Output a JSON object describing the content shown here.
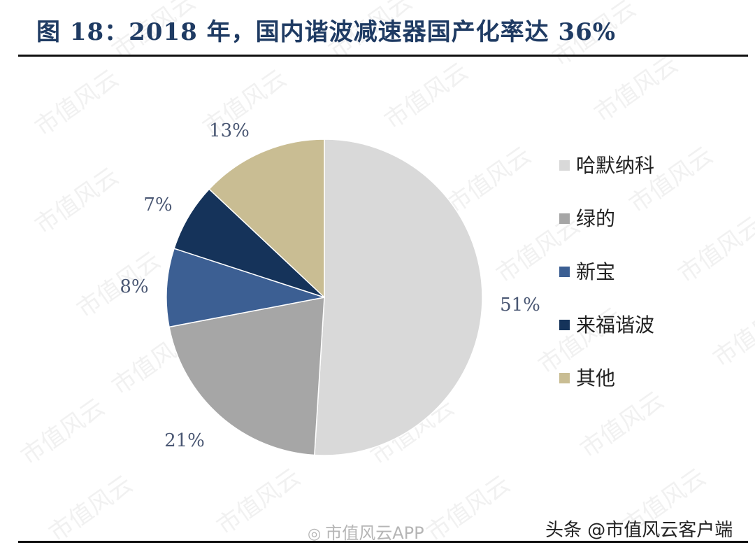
{
  "title": "图 18：2018 年，国内谐波减速器国产化率达 36%",
  "watermark_text": "市值风云",
  "credits": {
    "left_logo": "weibo-logo-icon",
    "left_text": "市值风云APP",
    "right_text": "头条 @市值风云客户端"
  },
  "chart_data": {
    "type": "pie",
    "slices": [
      {
        "name": "哈默纳科",
        "value": 51,
        "label": "51%",
        "color": "#d9d9d9"
      },
      {
        "name": "绿的",
        "value": 21,
        "label": "21%",
        "color": "#a6a6a6"
      },
      {
        "name": "新宝",
        "value": 8,
        "label": "8%",
        "color": "#3c5f93"
      },
      {
        "name": "来福谐波",
        "value": 7,
        "label": "7%",
        "color": "#15335a"
      },
      {
        "name": "其他",
        "value": 13,
        "label": "13%",
        "color": "#c9bd93"
      }
    ],
    "start": "12 o'clock",
    "direction": "clockwise",
    "legend_position": "right",
    "label_color": "#4a5773"
  }
}
